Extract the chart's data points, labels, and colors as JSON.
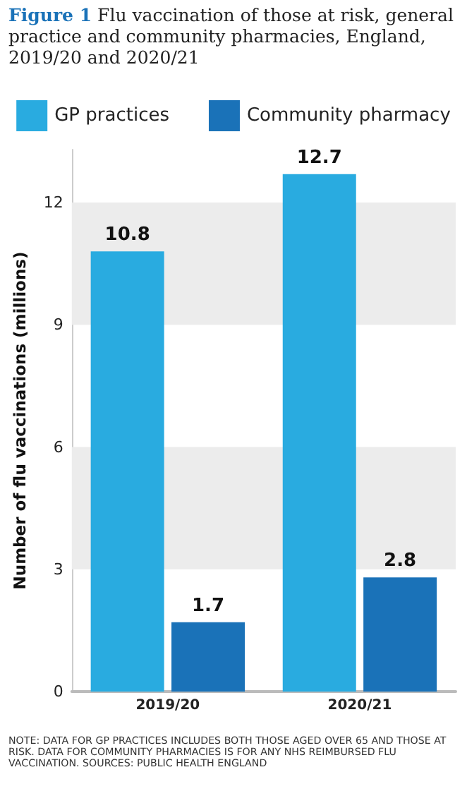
{
  "chart_data": {
    "type": "bar",
    "title": "Figure 1",
    "subtitle": "Flu vaccination of those at risk, general practice and community pharmacies, England, 2019/20 and 2020/21",
    "ylabel": "Number of flu vaccinations (millions)",
    "categories": [
      "2019/20",
      "2020/21"
    ],
    "series": [
      {
        "name": "GP practices",
        "color": "#29abe0",
        "values": [
          10.8,
          12.7
        ]
      },
      {
        "name": "Community pharmacy",
        "color": "#1a72b8",
        "values": [
          1.7,
          2.8
        ]
      }
    ],
    "ylim": [
      0,
      13.3
    ],
    "yticks": [
      0,
      3,
      6,
      9,
      12
    ],
    "grid": false,
    "legend": "top",
    "data_labels": true,
    "bands": [
      {
        "axis": "y",
        "from": 3,
        "to": 6,
        "color": "#ececec"
      },
      {
        "axis": "y",
        "from": 9,
        "to": 12,
        "color": "#ececec"
      }
    ],
    "annotations": [
      "NOTE: DATA FOR GP PRACTICES INCLUDES BOTH THOSE AGED OVER 65 AND THOSE AT RISK. DATA FOR COMMUNITY PHARMACIES IS FOR ANY NHS REIMBURSED FLU VACCINATION. SOURCES: PUBLIC HEALTH ENGLAND"
    ]
  }
}
